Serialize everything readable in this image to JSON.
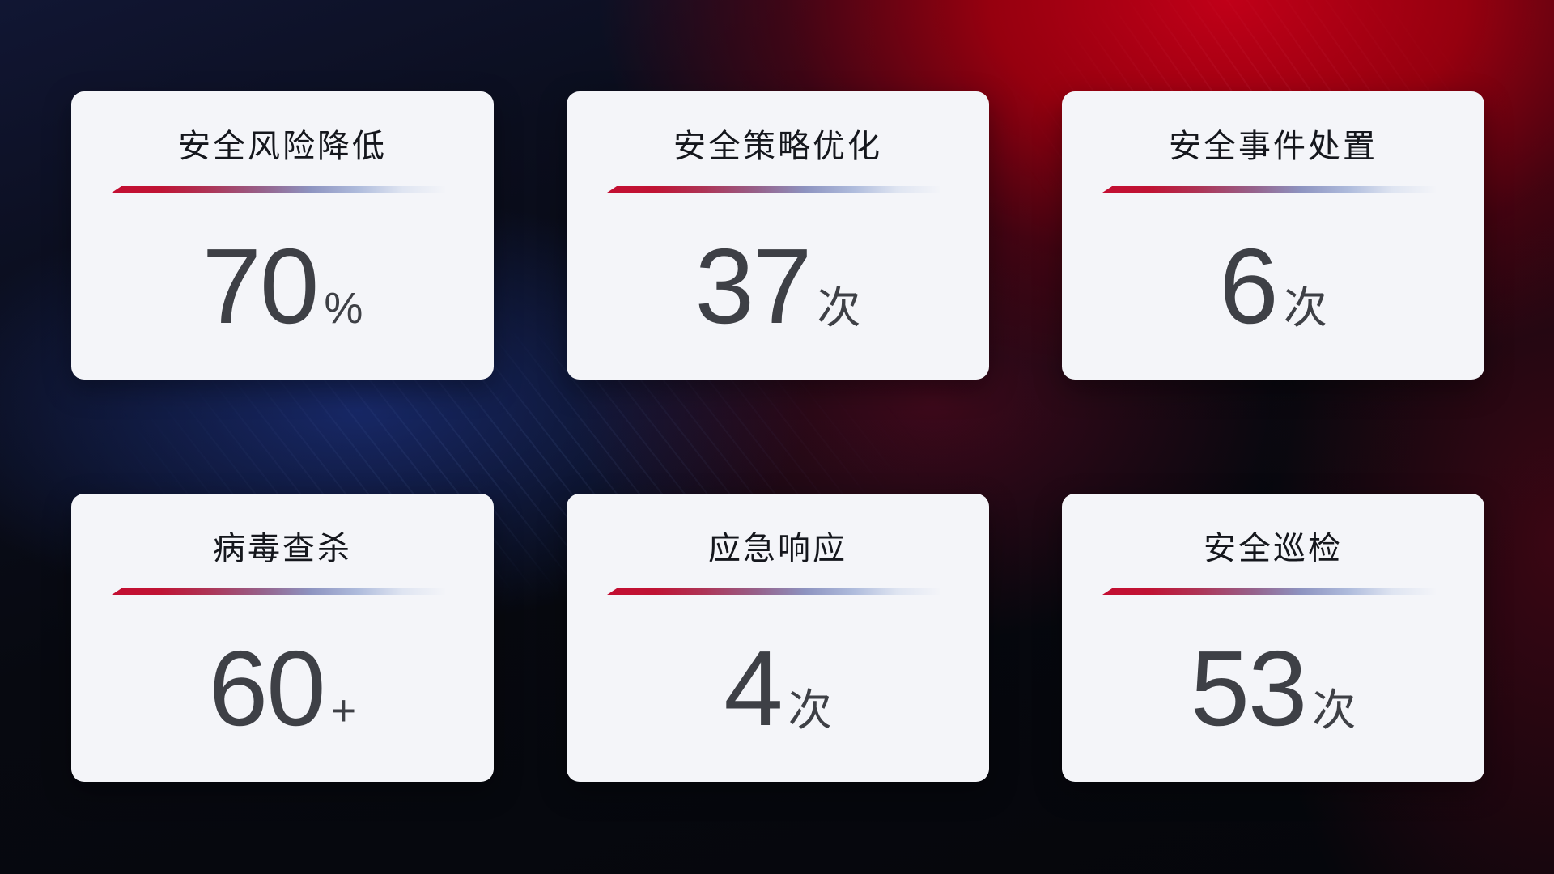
{
  "colors": {
    "background_base": "#070910",
    "background_red_glow": "#b00016",
    "background_blue_glow": "#1b2d78",
    "card_background": "#f4f5f9",
    "title_text": "#15171d",
    "value_text": "#3e4046",
    "divider_start_red": "#c30e32",
    "divider_mid_blue": "#8d93c0",
    "divider_end_fade": "#f4f5f9"
  },
  "cards": [
    {
      "title": "安全风险降低",
      "value": "70",
      "unit": "%"
    },
    {
      "title": "安全策略优化",
      "value": "37",
      "unit": "次"
    },
    {
      "title": "安全事件处置",
      "value": "6",
      "unit": "次"
    },
    {
      "title": "病毒查杀",
      "value": "60",
      "unit": "+"
    },
    {
      "title": "应急响应",
      "value": "4",
      "unit": "次"
    },
    {
      "title": "安全巡检",
      "value": "53",
      "unit": "次"
    }
  ]
}
